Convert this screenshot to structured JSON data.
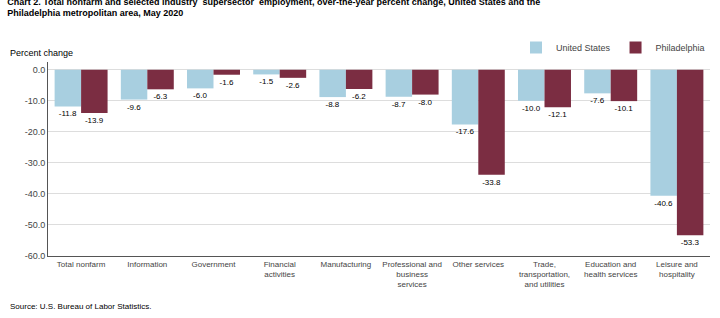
{
  "chart_data": {
    "type": "bar",
    "title": "Chart 2. Total nonfarm and selected industry  supersector  employment, over-the-year percent change, United States and the\nPhiladelphia metropolitan area, May 2020",
    "ylabel": "Percent change",
    "annotations": [
      "Source: U.S. Bureau of Labor Statistics."
    ],
    "categories": [
      "Total nonfarm",
      "Information",
      "Government",
      "Financial\nactivities",
      "Manufacturing",
      "Professional and\nbusiness\nservices",
      "Other services",
      "Trade,\ntransportation,\nand utilities",
      "Education and\nhealth services",
      "Leisure and\nhospitality"
    ],
    "series": [
      {
        "name": "United States",
        "color": "#a8cfe0",
        "values": [
          -11.8,
          -9.6,
          -6.0,
          -1.5,
          -8.8,
          -8.7,
          -17.6,
          -10.0,
          -7.6,
          -40.6
        ],
        "value_labels": [
          "-11.8",
          "-9.6",
          "-6.0",
          "-1.5",
          "-8.8",
          "-8.7",
          "-17.6",
          "-10.0",
          "-7.6",
          "-40.6"
        ]
      },
      {
        "name": "Philadelphia",
        "color": "#7b2d42",
        "values": [
          -13.9,
          -6.3,
          -1.6,
          -2.6,
          -6.2,
          -8.0,
          -33.8,
          -12.1,
          -10.1,
          -53.3
        ],
        "value_labels": [
          "-13.9",
          "-6.3",
          "-1.6",
          "-2.6",
          "-6.2",
          "-8.0",
          "-33.8",
          "-12.1",
          "-10.1",
          "-53.3"
        ]
      }
    ],
    "ylim": [
      -60,
      2.5
    ],
    "yticks": [
      {
        "value": 0,
        "label": "0.0"
      },
      {
        "value": -10,
        "label": "-10.0"
      },
      {
        "value": -20,
        "label": "-20.0"
      },
      {
        "value": -30,
        "label": "-30.0"
      },
      {
        "value": -40,
        "label": "-40.0"
      },
      {
        "value": -50,
        "label": "-50.0"
      },
      {
        "value": -60,
        "label": "-60.0"
      }
    ],
    "grid": true,
    "legend": "upper right",
    "data_labels": true
  }
}
